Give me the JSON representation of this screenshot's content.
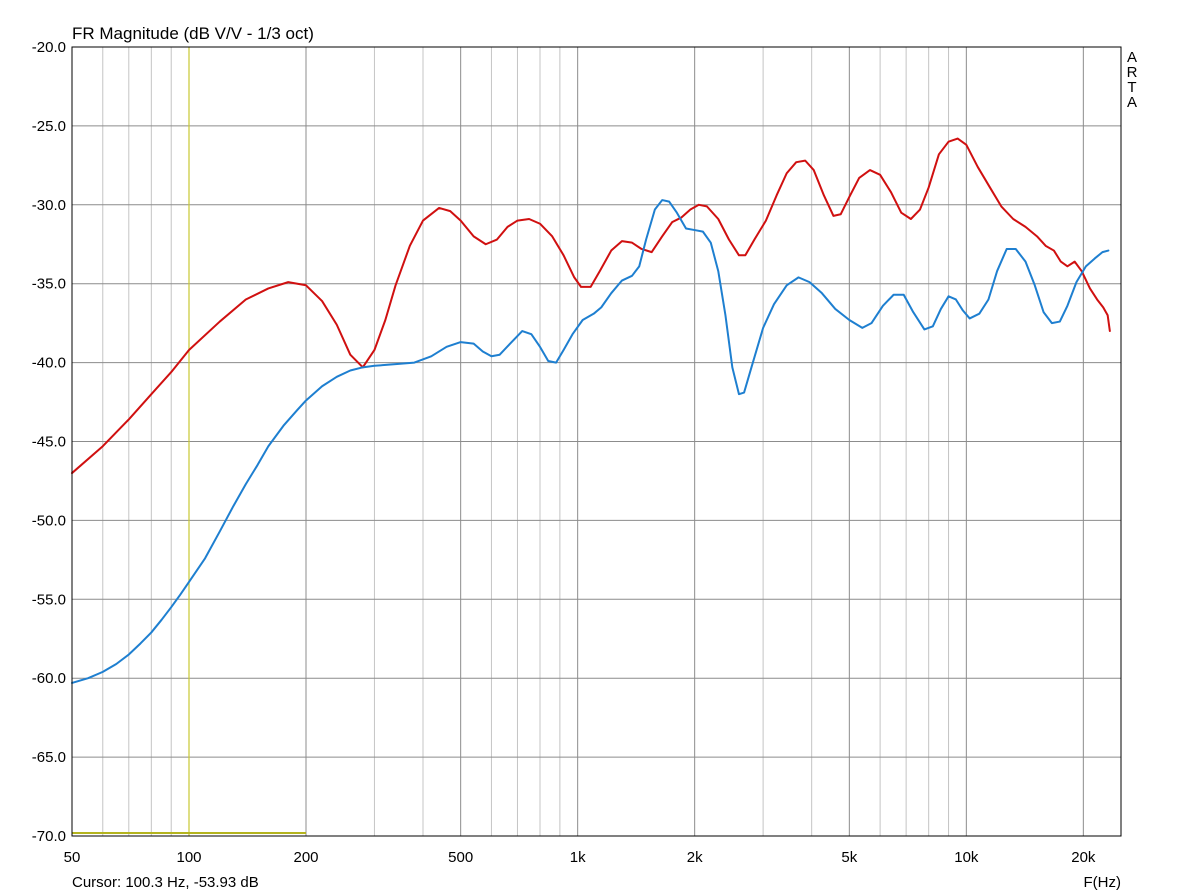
{
  "chart_data": {
    "type": "line",
    "title": "FR Magnitude (dB V/V - 1/3 oct)",
    "xlabel": "F(Hz)",
    "x_scale": "log",
    "xlim": [
      50,
      25000
    ],
    "ylim": [
      -70,
      -20
    ],
    "grid": true,
    "brand": "ARTA",
    "cursor_text": "Cursor: 100.3 Hz, -53.93 dB",
    "cursor": {
      "x": 100,
      "color": "#c8c832",
      "marker_range": [
        50,
        200
      ]
    },
    "x_ticks": [
      {
        "v": 50,
        "label": "50"
      },
      {
        "v": 100,
        "label": "100"
      },
      {
        "v": 200,
        "label": "200"
      },
      {
        "v": 500,
        "label": "500"
      },
      {
        "v": 1000,
        "label": "1k"
      },
      {
        "v": 2000,
        "label": "2k"
      },
      {
        "v": 5000,
        "label": "5k"
      },
      {
        "v": 10000,
        "label": "10k"
      },
      {
        "v": 20000,
        "label": "20k"
      }
    ],
    "y_ticks": [
      {
        "v": -20,
        "label": "-20.0"
      },
      {
        "v": -25,
        "label": "-25.0"
      },
      {
        "v": -30,
        "label": "-30.0"
      },
      {
        "v": -35,
        "label": "-35.0"
      },
      {
        "v": -40,
        "label": "-40.0"
      },
      {
        "v": -45,
        "label": "-45.0"
      },
      {
        "v": -50,
        "label": "-50.0"
      },
      {
        "v": -55,
        "label": "-55.0"
      },
      {
        "v": -60,
        "label": "-60.0"
      },
      {
        "v": -65,
        "label": "-65.0"
      },
      {
        "v": -70,
        "label": "-70.0"
      }
    ],
    "series": [
      {
        "color": "#d01010",
        "points": [
          [
            50,
            -47.0
          ],
          [
            60,
            -45.3
          ],
          [
            70,
            -43.6
          ],
          [
            80,
            -42.0
          ],
          [
            90,
            -40.6
          ],
          [
            100,
            -39.2
          ],
          [
            120,
            -37.4
          ],
          [
            140,
            -36.0
          ],
          [
            160,
            -35.3
          ],
          [
            180,
            -34.9
          ],
          [
            200,
            -35.1
          ],
          [
            220,
            -36.1
          ],
          [
            240,
            -37.6
          ],
          [
            260,
            -39.5
          ],
          [
            280,
            -40.3
          ],
          [
            300,
            -39.2
          ],
          [
            320,
            -37.3
          ],
          [
            340,
            -35.1
          ],
          [
            370,
            -32.6
          ],
          [
            400,
            -31.0
          ],
          [
            440,
            -30.2
          ],
          [
            470,
            -30.4
          ],
          [
            500,
            -31.0
          ],
          [
            540,
            -32.0
          ],
          [
            580,
            -32.5
          ],
          [
            620,
            -32.2
          ],
          [
            660,
            -31.4
          ],
          [
            700,
            -31.0
          ],
          [
            750,
            -30.9
          ],
          [
            800,
            -31.2
          ],
          [
            860,
            -32.0
          ],
          [
            920,
            -33.2
          ],
          [
            980,
            -34.6
          ],
          [
            1020,
            -35.2
          ],
          [
            1080,
            -35.2
          ],
          [
            1140,
            -34.2
          ],
          [
            1220,
            -32.9
          ],
          [
            1300,
            -32.3
          ],
          [
            1380,
            -32.4
          ],
          [
            1460,
            -32.8
          ],
          [
            1550,
            -33.0
          ],
          [
            1650,
            -32.0
          ],
          [
            1750,
            -31.1
          ],
          [
            1850,
            -30.8
          ],
          [
            1950,
            -30.3
          ],
          [
            2050,
            -30.0
          ],
          [
            2150,
            -30.1
          ],
          [
            2300,
            -30.9
          ],
          [
            2450,
            -32.2
          ],
          [
            2600,
            -33.2
          ],
          [
            2700,
            -33.2
          ],
          [
            2850,
            -32.2
          ],
          [
            3050,
            -31.0
          ],
          [
            3250,
            -29.4
          ],
          [
            3450,
            -28.0
          ],
          [
            3650,
            -27.3
          ],
          [
            3850,
            -27.2
          ],
          [
            4050,
            -27.8
          ],
          [
            4300,
            -29.4
          ],
          [
            4550,
            -30.7
          ],
          [
            4750,
            -30.6
          ],
          [
            5000,
            -29.5
          ],
          [
            5300,
            -28.3
          ],
          [
            5650,
            -27.8
          ],
          [
            6000,
            -28.1
          ],
          [
            6400,
            -29.2
          ],
          [
            6800,
            -30.5
          ],
          [
            7200,
            -30.9
          ],
          [
            7600,
            -30.3
          ],
          [
            8000,
            -28.9
          ],
          [
            8500,
            -26.8
          ],
          [
            9000,
            -26.0
          ],
          [
            9500,
            -25.8
          ],
          [
            10000,
            -26.2
          ],
          [
            10700,
            -27.6
          ],
          [
            11500,
            -28.9
          ],
          [
            12300,
            -30.1
          ],
          [
            13200,
            -30.9
          ],
          [
            14200,
            -31.4
          ],
          [
            15200,
            -32.0
          ],
          [
            16000,
            -32.6
          ],
          [
            16800,
            -32.9
          ],
          [
            17500,
            -33.6
          ],
          [
            18200,
            -33.9
          ],
          [
            19000,
            -33.6
          ],
          [
            19800,
            -34.2
          ],
          [
            20800,
            -35.3
          ],
          [
            21700,
            -36.0
          ],
          [
            22500,
            -36.5
          ],
          [
            23100,
            -37.0
          ],
          [
            23400,
            -38.0
          ]
        ]
      },
      {
        "color": "#1e7fd0",
        "points": [
          [
            50,
            -60.3
          ],
          [
            55,
            -60.0
          ],
          [
            60,
            -59.6
          ],
          [
            65,
            -59.1
          ],
          [
            70,
            -58.5
          ],
          [
            75,
            -57.8
          ],
          [
            80,
            -57.1
          ],
          [
            85,
            -56.3
          ],
          [
            90,
            -55.5
          ],
          [
            95,
            -54.7
          ],
          [
            100,
            -53.9
          ],
          [
            110,
            -52.4
          ],
          [
            120,
            -50.7
          ],
          [
            130,
            -49.1
          ],
          [
            140,
            -47.7
          ],
          [
            150,
            -46.5
          ],
          [
            160,
            -45.3
          ],
          [
            175,
            -44.0
          ],
          [
            190,
            -43.0
          ],
          [
            200,
            -42.4
          ],
          [
            220,
            -41.5
          ],
          [
            240,
            -40.9
          ],
          [
            260,
            -40.5
          ],
          [
            280,
            -40.3
          ],
          [
            300,
            -40.2
          ],
          [
            340,
            -40.1
          ],
          [
            380,
            -40.0
          ],
          [
            420,
            -39.6
          ],
          [
            460,
            -39.0
          ],
          [
            500,
            -38.7
          ],
          [
            540,
            -38.8
          ],
          [
            570,
            -39.3
          ],
          [
            600,
            -39.6
          ],
          [
            630,
            -39.5
          ],
          [
            670,
            -38.8
          ],
          [
            720,
            -38.0
          ],
          [
            760,
            -38.2
          ],
          [
            800,
            -39.0
          ],
          [
            840,
            -39.9
          ],
          [
            880,
            -40.0
          ],
          [
            920,
            -39.2
          ],
          [
            970,
            -38.2
          ],
          [
            1030,
            -37.3
          ],
          [
            1100,
            -36.9
          ],
          [
            1150,
            -36.5
          ],
          [
            1220,
            -35.6
          ],
          [
            1300,
            -34.8
          ],
          [
            1380,
            -34.5
          ],
          [
            1440,
            -33.9
          ],
          [
            1500,
            -32.2
          ],
          [
            1580,
            -30.3
          ],
          [
            1650,
            -29.7
          ],
          [
            1720,
            -29.8
          ],
          [
            1800,
            -30.5
          ],
          [
            1900,
            -31.5
          ],
          [
            2000,
            -31.6
          ],
          [
            2100,
            -31.7
          ],
          [
            2200,
            -32.4
          ],
          [
            2300,
            -34.2
          ],
          [
            2400,
            -37.0
          ],
          [
            2500,
            -40.3
          ],
          [
            2600,
            -42.0
          ],
          [
            2680,
            -41.9
          ],
          [
            2800,
            -40.3
          ],
          [
            3000,
            -37.8
          ],
          [
            3200,
            -36.3
          ],
          [
            3450,
            -35.1
          ],
          [
            3700,
            -34.6
          ],
          [
            3950,
            -34.9
          ],
          [
            4250,
            -35.6
          ],
          [
            4600,
            -36.6
          ],
          [
            5000,
            -37.3
          ],
          [
            5400,
            -37.8
          ],
          [
            5700,
            -37.5
          ],
          [
            6100,
            -36.4
          ],
          [
            6500,
            -35.7
          ],
          [
            6900,
            -35.7
          ],
          [
            7300,
            -36.8
          ],
          [
            7800,
            -37.9
          ],
          [
            8200,
            -37.7
          ],
          [
            8600,
            -36.6
          ],
          [
            9000,
            -35.8
          ],
          [
            9400,
            -36.0
          ],
          [
            9800,
            -36.7
          ],
          [
            10200,
            -37.2
          ],
          [
            10800,
            -36.9
          ],
          [
            11400,
            -36.0
          ],
          [
            12000,
            -34.2
          ],
          [
            12700,
            -32.8
          ],
          [
            13400,
            -32.8
          ],
          [
            14200,
            -33.6
          ],
          [
            15000,
            -35.1
          ],
          [
            15800,
            -36.8
          ],
          [
            16600,
            -37.5
          ],
          [
            17400,
            -37.4
          ],
          [
            18200,
            -36.4
          ],
          [
            19200,
            -34.9
          ],
          [
            20300,
            -33.9
          ],
          [
            21400,
            -33.4
          ],
          [
            22400,
            -33.0
          ],
          [
            23200,
            -32.9
          ]
        ]
      }
    ]
  }
}
